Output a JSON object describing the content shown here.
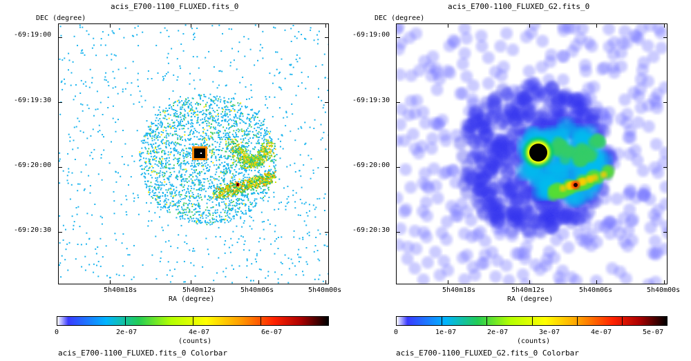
{
  "panels": [
    {
      "title": "acis_E700-1100_FLUXED.fits_0",
      "ylabel": "DEC (degree)",
      "xlabel": "RA (degree)",
      "yticks": [
        "-69:19:00",
        "-69:19:30",
        "-69:20:00",
        "-69:20:30"
      ],
      "xticks": [
        "5h40m18s",
        "5h40m12s",
        "5h40m06s",
        "5h40m00s"
      ],
      "colorbar": {
        "ticks": [
          "0",
          "2e-07",
          "4e-07",
          "6e-07"
        ],
        "unit": "(counts)",
        "caption": "acis_E700-1100_FLUXED.fits_0 Colorbar"
      }
    },
    {
      "title": "acis_E700-1100_FLUXED_G2.fits_0",
      "ylabel": "DEC (degree)",
      "xlabel": "RA (degree)",
      "yticks": [
        "-69:19:00",
        "-69:19:30",
        "-69:20:00",
        "-69:20:30"
      ],
      "xticks": [
        "5h40m18s",
        "5h40m12s",
        "5h40m06s",
        "5h40m00s"
      ],
      "colorbar": {
        "ticks": [
          "0",
          "1e-07",
          "2e-07",
          "3e-07",
          "4e-07",
          "5e-07"
        ],
        "unit": "(counts)",
        "caption": "acis_E700-1100_FLUXED_G2.fits_0 Colorbar"
      }
    }
  ],
  "chart_data": [
    {
      "type": "heatmap",
      "title": "acis_E700-1100_FLUXED.fits_0",
      "xlabel": "RA (degree)",
      "ylabel": "DEC (degree)",
      "colorbar_range": [
        0,
        7.3e-07
      ],
      "colormap": "blue-cyan-green-yellow-red-black",
      "grid": false
    },
    {
      "type": "heatmap",
      "title": "acis_E700-1100_FLUXED_G2.fits_0",
      "xlabel": "RA (degree)",
      "ylabel": "DEC (degree)",
      "colorbar_range": [
        0,
        5.2e-07
      ],
      "colormap": "blue-cyan-green-yellow-red-black",
      "grid": false
    }
  ],
  "colors": {
    "cmap": [
      "#ffffff",
      "#5555ff",
      "#00ccff",
      "#22cc44",
      "#ffff00",
      "#ff6600",
      "#cc0000",
      "#000000"
    ]
  }
}
